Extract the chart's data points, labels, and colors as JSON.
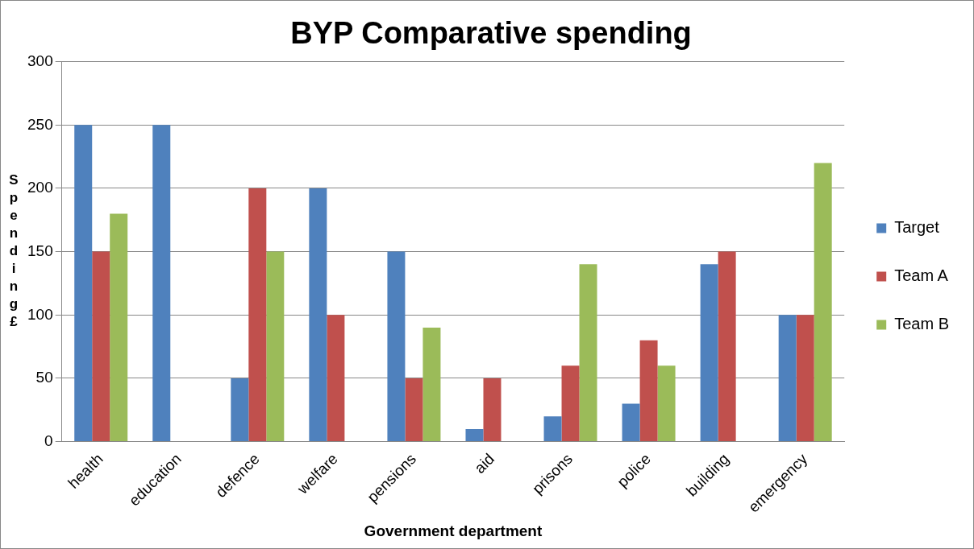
{
  "chart_data": {
    "type": "bar",
    "title": "BYP Comparative spending",
    "xlabel": "Government department",
    "ylabel": "Spending £",
    "categories": [
      "health",
      "education",
      "defence",
      "welfare",
      "pensions",
      "aid",
      "prisons",
      "police",
      "building",
      "emergency"
    ],
    "series": [
      {
        "name": "Target",
        "color": "#4f81bd",
        "values": [
          250,
          250,
          50,
          200,
          150,
          10,
          20,
          30,
          140,
          100
        ]
      },
      {
        "name": "Team A",
        "color": "#c0504d",
        "values": [
          150,
          null,
          200,
          100,
          50,
          50,
          60,
          80,
          150,
          100
        ]
      },
      {
        "name": "Team B",
        "color": "#9bbb59",
        "values": [
          180,
          null,
          150,
          null,
          90,
          null,
          140,
          60,
          null,
          220
        ]
      }
    ],
    "ylim": [
      0,
      300
    ],
    "yticks": [
      0,
      50,
      100,
      150,
      200,
      250,
      300
    ],
    "grid": "y",
    "legend": "right"
  }
}
